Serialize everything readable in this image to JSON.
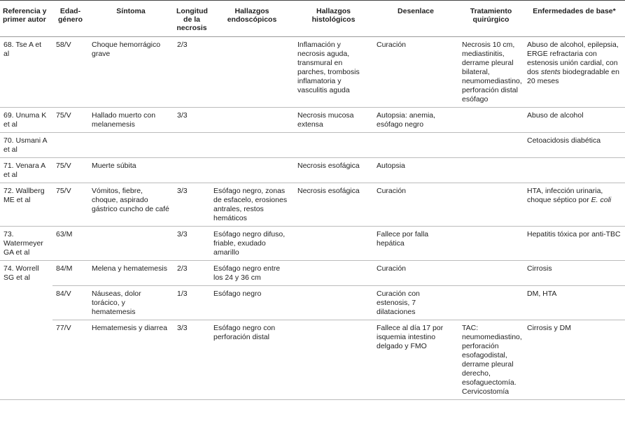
{
  "table": {
    "headers": [
      "Referencia y primer autor",
      "Edad-género",
      "Síntoma",
      "Longitud de la necrosis",
      "Hallazgos endoscópicos",
      "Hallazgos histológicos",
      "Desenlace",
      "Tratamiento quirúrgico",
      "Enfermedades de base*"
    ],
    "rows": [
      [
        "68. Tse A et al",
        "58/V",
        "Choque hemorrágico grave",
        "2/3",
        null,
        "Inflamación y necrosis aguda, transmural en parches, trombosis inflamatoria y vasculitis aguda",
        "Curación",
        "Necrosis 10 cm, mediastinitis, derrame pleural bilateral, neumomediastino, perforación distal esófago",
        [
          "Abuso de alcohol, epilepsia, ERGE refractaria con estenosis unión cardial, con dos ",
          "stents",
          " biodegradable en 20 meses"
        ]
      ],
      [
        "69. Unuma K et al",
        "75/V",
        "Hallado muerto con melanemesis",
        "3/3",
        null,
        "Necrosis mucosa extensa",
        "Autopsia: anemia, esófago negro",
        null,
        "Abuso de alcohol"
      ],
      [
        "70. Usmani A et al",
        null,
        null,
        null,
        null,
        null,
        null,
        null,
        "Cetoacidosis diabética"
      ],
      [
        "71. Venara A et al",
        "75/V",
        "Muerte súbita",
        null,
        null,
        "Necrosis esofágica",
        "Autopsia",
        null,
        null
      ],
      [
        "72. Wallberg ME et al",
        "75/V",
        "Vómitos, fiebre, choque, aspirado gástrico cuncho de café",
        "3/3",
        "Esófago negro, zonas de esfacelo, erosiones antrales, restos hemáticos",
        "Necrosis esofágica",
        "Curación",
        null,
        [
          "HTA, infección urinaria, choque séptico por ",
          "E. coli"
        ]
      ],
      [
        "73. Watermeyer GA et al",
        "63/M",
        null,
        "3/3",
        "Esófago negro difuso, friable, exudado amarillo",
        null,
        "Fallece por falla hepática",
        null,
        "Hepatitis tóxica por anti-TBC"
      ],
      [
        "74. Worrell SG et al",
        "84/M",
        "Melena y hematemesis",
        "2/3",
        "Esófago negro entre los 24 y 36 cm",
        null,
        "Curación",
        null,
        "Cirrosis"
      ],
      [
        "84/V",
        "Náuseas, dolor torácico, y hematemesis",
        "1/3",
        "Esófago negro",
        null,
        "Curación con estenosis, 7 dilataciones",
        null,
        "DM, HTA"
      ],
      [
        "77/V",
        "Hematemesis y diarrea",
        "3/3",
        "Esófago negro con perforación distal",
        null,
        "Fallece al día 17 por isquemia intestino delgado y FMO",
        "TAC: neumomediastino, perforación esofagodistal, derrame pleural derecho, esofaguectomía. Cervicostomía",
        "Cirrosis y DM"
      ]
    ]
  }
}
